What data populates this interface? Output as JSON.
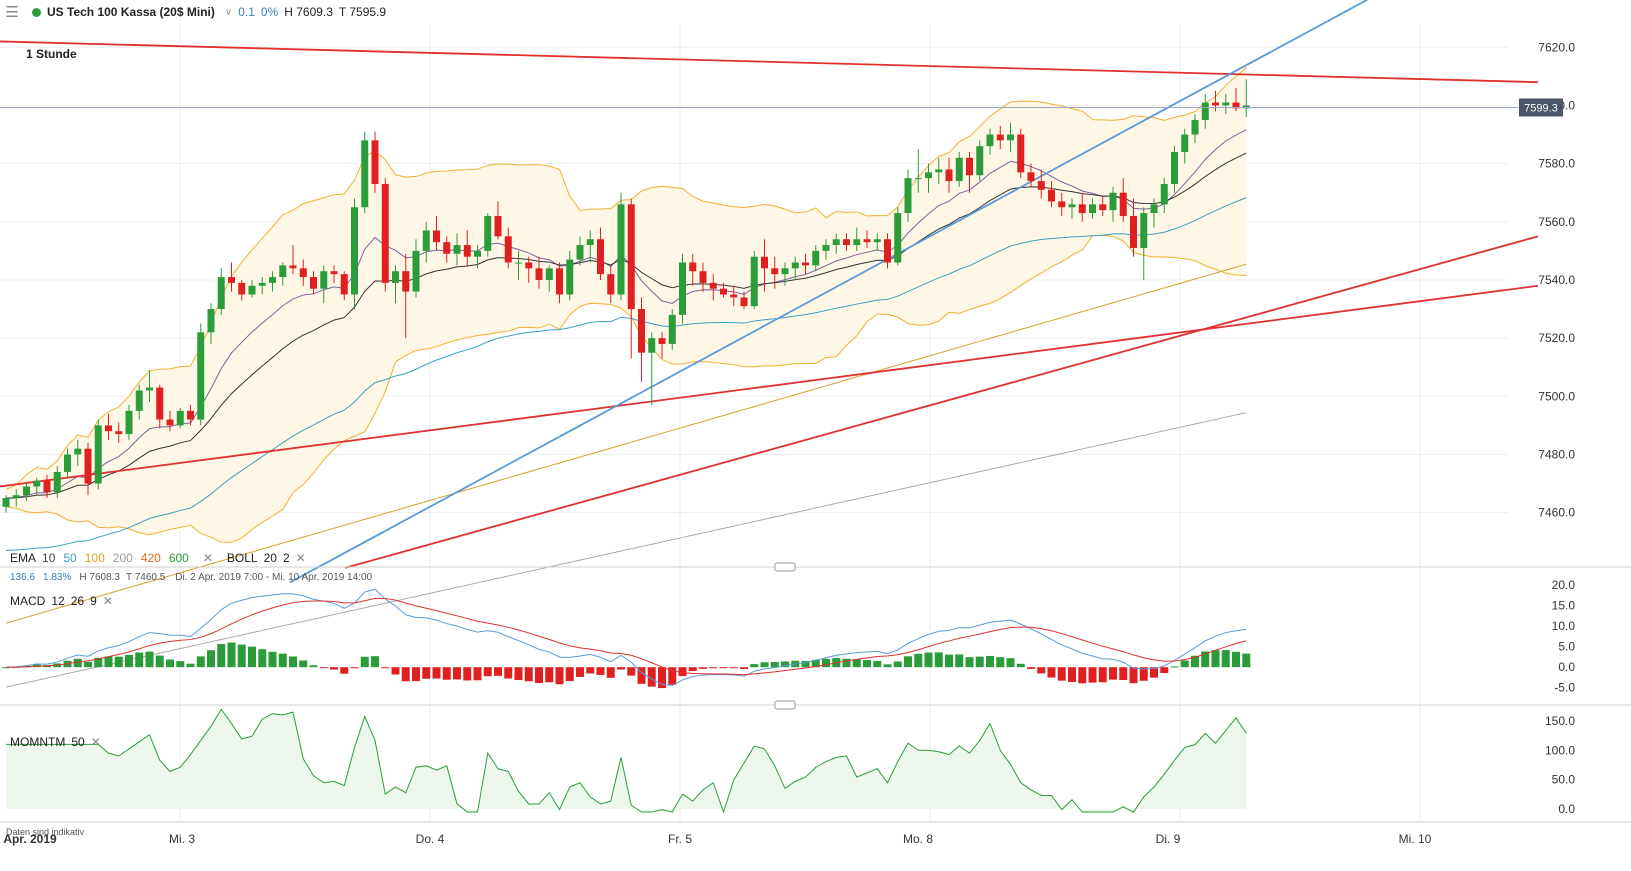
{
  "header": {
    "instrument": "US Tech 100 Kassa (20$ Mini)",
    "change_abs": "0.1",
    "change_pct": "0%",
    "high_label": "H 7609.3",
    "low_label": "T 7595.9"
  },
  "timeframe": "1 Stunde",
  "ema_legend": {
    "label": "EMA",
    "periods": [
      {
        "text": "10",
        "color": "#444444"
      },
      {
        "text": "50",
        "color": "#3a9fc0"
      },
      {
        "text": "100",
        "color": "#e0a020"
      },
      {
        "text": "200",
        "color": "#999999"
      },
      {
        "text": "420",
        "color": "#e06a1a"
      },
      {
        "text": "600",
        "color": "#2a9d3a"
      }
    ],
    "boll_label": "BOLL",
    "boll_period": "20",
    "boll_dev": "2"
  },
  "info_line": {
    "range_pts": "136.6",
    "range_pct": "1.83%",
    "high": "H 7608.3",
    "low": "T 7460.5",
    "period": "Di. 2 Apr. 2019 7:00 - Mi. 10 Apr. 2019 14:00"
  },
  "macd_legend": {
    "label": "MACD",
    "fast": "12",
    "slow": "26",
    "signal": "9"
  },
  "mom_legend": {
    "label": "MOMNTM",
    "period": "50"
  },
  "disclaimer": "Daten sind indikativ",
  "colors": {
    "up": "#2a9d3a",
    "down": "#e02020",
    "bollinger": "#f0b030",
    "trendline_red": "#e03030",
    "trendline_blue": "#5a9ad8"
  },
  "chart_data": [
    {
      "type": "candlestick",
      "title": "US Tech 100 Kassa (20$ Mini)",
      "x_axis_labels": [
        "Apr. 2019",
        "Mi. 3",
        "Do. 4",
        "Fr. 5",
        "Mo. 8",
        "Di. 9",
        "Mi. 10"
      ],
      "y_tick_labels": [
        "7620.0",
        "7600.0",
        "7580.0",
        "7560.0",
        "7540.0",
        "7520.0",
        "7500.0",
        "7480.0",
        "7460.0"
      ],
      "ylim": [
        7442,
        7628
      ],
      "last_price": "7599.3",
      "candles": [
        [
          7462,
          7466,
          7460,
          7465
        ],
        [
          7465,
          7468,
          7462,
          7466
        ],
        [
          7466,
          7470,
          7464,
          7469
        ],
        [
          7469,
          7472,
          7466,
          7471
        ],
        [
          7471,
          7473,
          7465,
          7467
        ],
        [
          7467,
          7476,
          7465,
          7474
        ],
        [
          7474,
          7482,
          7472,
          7480
        ],
        [
          7480,
          7485,
          7476,
          7482
        ],
        [
          7482,
          7484,
          7466,
          7470
        ],
        [
          7470,
          7492,
          7468,
          7490
        ],
        [
          7490,
          7494,
          7485,
          7488
        ],
        [
          7488,
          7491,
          7484,
          7487
        ],
        [
          7487,
          7497,
          7485,
          7495
        ],
        [
          7495,
          7504,
          7492,
          7502
        ],
        [
          7502,
          7509,
          7498,
          7503
        ],
        [
          7503,
          7504,
          7489,
          7492
        ],
        [
          7492,
          7495,
          7488,
          7490
        ],
        [
          7490,
          7496,
          7489,
          7495
        ],
        [
          7495,
          7497,
          7490,
          7492
        ],
        [
          7492,
          7525,
          7490,
          7522
        ],
        [
          7522,
          7532,
          7518,
          7530
        ],
        [
          7530,
          7544,
          7528,
          7541
        ],
        [
          7541,
          7546,
          7536,
          7539
        ],
        [
          7539,
          7540,
          7533,
          7535
        ],
        [
          7535,
          7540,
          7534,
          7538
        ],
        [
          7538,
          7541,
          7535,
          7539
        ],
        [
          7539,
          7543,
          7536,
          7541
        ],
        [
          7541,
          7546,
          7538,
          7545
        ],
        [
          7545,
          7552,
          7542,
          7544
        ],
        [
          7544,
          7547,
          7538,
          7541
        ],
        [
          7541,
          7543,
          7535,
          7537
        ],
        [
          7537,
          7545,
          7532,
          7543
        ],
        [
          7543,
          7545,
          7539,
          7542
        ],
        [
          7542,
          7543,
          7533,
          7535
        ],
        [
          7535,
          7568,
          7530,
          7565
        ],
        [
          7565,
          7591,
          7563,
          7588
        ],
        [
          7588,
          7591,
          7570,
          7573
        ],
        [
          7573,
          7575,
          7536,
          7539
        ],
        [
          7539,
          7545,
          7532,
          7543
        ],
        [
          7543,
          7549,
          7520,
          7536
        ],
        [
          7536,
          7554,
          7534,
          7550
        ],
        [
          7550,
          7560,
          7546,
          7557
        ],
        [
          7557,
          7562,
          7550,
          7553
        ],
        [
          7553,
          7555,
          7546,
          7549
        ],
        [
          7549,
          7556,
          7545,
          7552
        ],
        [
          7552,
          7557,
          7545,
          7548
        ],
        [
          7548,
          7552,
          7544,
          7550
        ],
        [
          7550,
          7563,
          7548,
          7562
        ],
        [
          7562,
          7567,
          7554,
          7555
        ],
        [
          7555,
          7558,
          7544,
          7546
        ],
        [
          7546,
          7550,
          7540,
          7546
        ],
        [
          7546,
          7548,
          7539,
          7544
        ],
        [
          7544,
          7548,
          7537,
          7540
        ],
        [
          7540,
          7545,
          7536,
          7544
        ],
        [
          7544,
          7546,
          7532,
          7535
        ],
        [
          7535,
          7550,
          7533,
          7547
        ],
        [
          7547,
          7555,
          7545,
          7552
        ],
        [
          7552,
          7557,
          7546,
          7554
        ],
        [
          7554,
          7558,
          7540,
          7542
        ],
        [
          7542,
          7545,
          7532,
          7535
        ],
        [
          7535,
          7570,
          7533,
          7566
        ],
        [
          7566,
          7568,
          7513,
          7530
        ],
        [
          7530,
          7534,
          7505,
          7515
        ],
        [
          7515,
          7522,
          7497,
          7520
        ],
        [
          7520,
          7522,
          7513,
          7518
        ],
        [
          7518,
          7530,
          7516,
          7528
        ],
        [
          7528,
          7549,
          7525,
          7546
        ],
        [
          7546,
          7549,
          7538,
          7543
        ],
        [
          7543,
          7546,
          7536,
          7539
        ],
        [
          7539,
          7542,
          7533,
          7537
        ],
        [
          7537,
          7539,
          7534,
          7535
        ],
        [
          7535,
          7538,
          7531,
          7534
        ],
        [
          7534,
          7536,
          7530,
          7531
        ],
        [
          7531,
          7550,
          7530,
          7548
        ],
        [
          7548,
          7554,
          7536,
          7544
        ],
        [
          7544,
          7548,
          7537,
          7542
        ],
        [
          7542,
          7546,
          7538,
          7544
        ],
        [
          7544,
          7548,
          7540,
          7546
        ],
        [
          7546,
          7549,
          7542,
          7545
        ],
        [
          7545,
          7552,
          7543,
          7550
        ],
        [
          7550,
          7554,
          7547,
          7552
        ],
        [
          7552,
          7556,
          7549,
          7554
        ],
        [
          7554,
          7556,
          7550,
          7552
        ],
        [
          7552,
          7558,
          7550,
          7554
        ],
        [
          7554,
          7557,
          7551,
          7553
        ],
        [
          7553,
          7556,
          7550,
          7554
        ],
        [
          7554,
          7556,
          7544,
          7546
        ],
        [
          7546,
          7565,
          7545,
          7563
        ],
        [
          7563,
          7578,
          7560,
          7575
        ],
        [
          7575,
          7585,
          7570,
          7575
        ],
        [
          7575,
          7580,
          7570,
          7577
        ],
        [
          7577,
          7582,
          7573,
          7578
        ],
        [
          7578,
          7582,
          7570,
          7574
        ],
        [
          7574,
          7584,
          7572,
          7582
        ],
        [
          7582,
          7584,
          7570,
          7576
        ],
        [
          7576,
          7588,
          7574,
          7586
        ],
        [
          7586,
          7592,
          7583,
          7590
        ],
        [
          7590,
          7593,
          7585,
          7588
        ],
        [
          7588,
          7594,
          7584,
          7590
        ],
        [
          7590,
          7592,
          7575,
          7577
        ],
        [
          7577,
          7580,
          7572,
          7574
        ],
        [
          7574,
          7578,
          7568,
          7571
        ],
        [
          7571,
          7574,
          7565,
          7567
        ],
        [
          7567,
          7570,
          7562,
          7565
        ],
        [
          7565,
          7568,
          7561,
          7566
        ],
        [
          7566,
          7570,
          7560,
          7563
        ],
        [
          7563,
          7568,
          7561,
          7566
        ],
        [
          7566,
          7569,
          7562,
          7564
        ],
        [
          7564,
          7572,
          7560,
          7570
        ],
        [
          7570,
          7575,
          7560,
          7562
        ],
        [
          7562,
          7568,
          7548,
          7551
        ],
        [
          7551,
          7565,
          7540,
          7563
        ],
        [
          7563,
          7568,
          7558,
          7566
        ],
        [
          7566,
          7575,
          7563,
          7573
        ],
        [
          7573,
          7586,
          7570,
          7584
        ],
        [
          7584,
          7592,
          7580,
          7590
        ],
        [
          7590,
          7597,
          7587,
          7595
        ],
        [
          7595,
          7604,
          7592,
          7601
        ],
        [
          7601,
          7605,
          7598,
          7600
        ],
        [
          7600,
          7604,
          7597,
          7601
        ],
        [
          7601,
          7606,
          7598,
          7599
        ],
        [
          7599,
          7609,
          7596,
          7600
        ]
      ],
      "trendlines": [
        {
          "color": "red",
          "from": [
            "x0",
            7622
          ],
          "to": [
            "x_end",
            7608
          ]
        },
        {
          "color": "blue",
          "from": [
            "mid",
            7432
          ],
          "to": [
            "x_end",
            7648
          ]
        },
        {
          "color": "red",
          "from": [
            "x0",
            7469
          ],
          "to": [
            "x_end",
            7538
          ]
        },
        {
          "color": "red",
          "from": [
            "x_left",
            7441
          ],
          "to": [
            "x_end",
            7555
          ]
        }
      ]
    },
    {
      "type": "line",
      "title": "MACD 12 26 9",
      "y_tick_labels": [
        "20.0",
        "15.0",
        "10.0",
        "5.0",
        "0.0",
        "-5.0"
      ],
      "ylim": [
        -8,
        22
      ]
    },
    {
      "type": "line",
      "title": "MOMNTM 50",
      "y_tick_labels": [
        "150.0",
        "100.0",
        "50.0",
        "0.0"
      ],
      "ylim": [
        -10,
        160
      ]
    }
  ]
}
